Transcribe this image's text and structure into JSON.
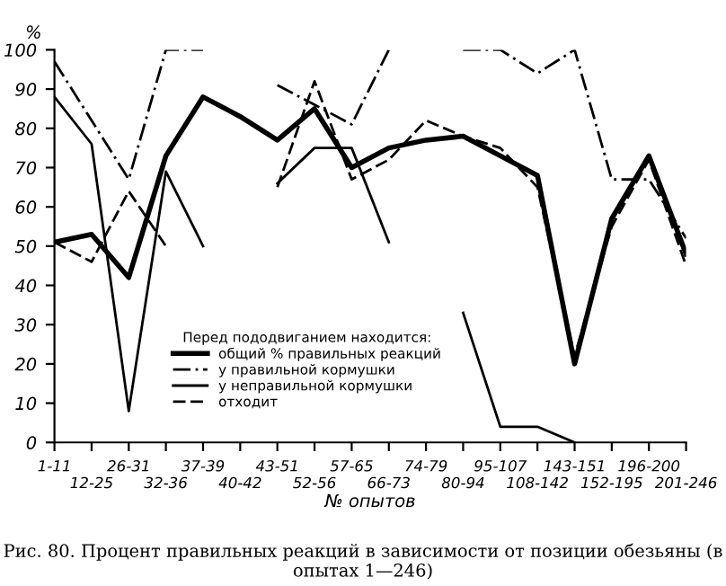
{
  "chart_data": {
    "type": "line",
    "title": "Рис. 80. Процент правильных реакций в зависимости от позиции обезьяны (в опытах 1—246)",
    "xlabel": "№ опытов",
    "ylabel": "%",
    "legend_title": "Перед пододвиганием находится:",
    "categories": [
      "1-11",
      "12-25",
      "26-31",
      "32-36",
      "37-39",
      "40-42",
      "43-51",
      "52-56",
      "57-65",
      "66-73",
      "74-79",
      "80-94",
      "95-107",
      "108-142",
      "143-151",
      "152-195",
      "196-200",
      "201-246"
    ],
    "ylim": [
      0,
      100
    ],
    "yticks": [
      0,
      10,
      20,
      30,
      40,
      50,
      60,
      70,
      80,
      90,
      100
    ],
    "grid": false,
    "legend": "bottom",
    "marker": "none",
    "series": [
      {
        "name": "общий % правильных реакций",
        "color": "#000000",
        "line_style": "solid",
        "values": [
          51,
          53,
          42,
          73,
          88,
          83,
          77,
          85,
          70,
          75,
          77,
          78,
          73,
          68,
          20,
          57,
          73,
          48
        ]
      },
      {
        "name": "у правильной кормушки",
        "color": "#000000",
        "line_style": "dashdot",
        "values": [
          97,
          82,
          67,
          100,
          100,
          null,
          91,
          86,
          81,
          100,
          null,
          100,
          100,
          94,
          100,
          67,
          67,
          52
        ]
      },
      {
        "name": "у неправильной кормушки",
        "color": "#000000",
        "line_style": "solid",
        "values": [
          88,
          76,
          8,
          69,
          50,
          null,
          66,
          75,
          75,
          51,
          null,
          33,
          4,
          4,
          0,
          null,
          null,
          null
        ]
      },
      {
        "name": "отходит",
        "color": "#000000",
        "line_style": "dashed",
        "values": [
          51,
          46,
          64,
          50,
          null,
          null,
          65,
          92,
          67,
          72,
          82,
          78,
          75,
          65,
          22,
          55,
          72,
          45
        ]
      }
    ]
  }
}
